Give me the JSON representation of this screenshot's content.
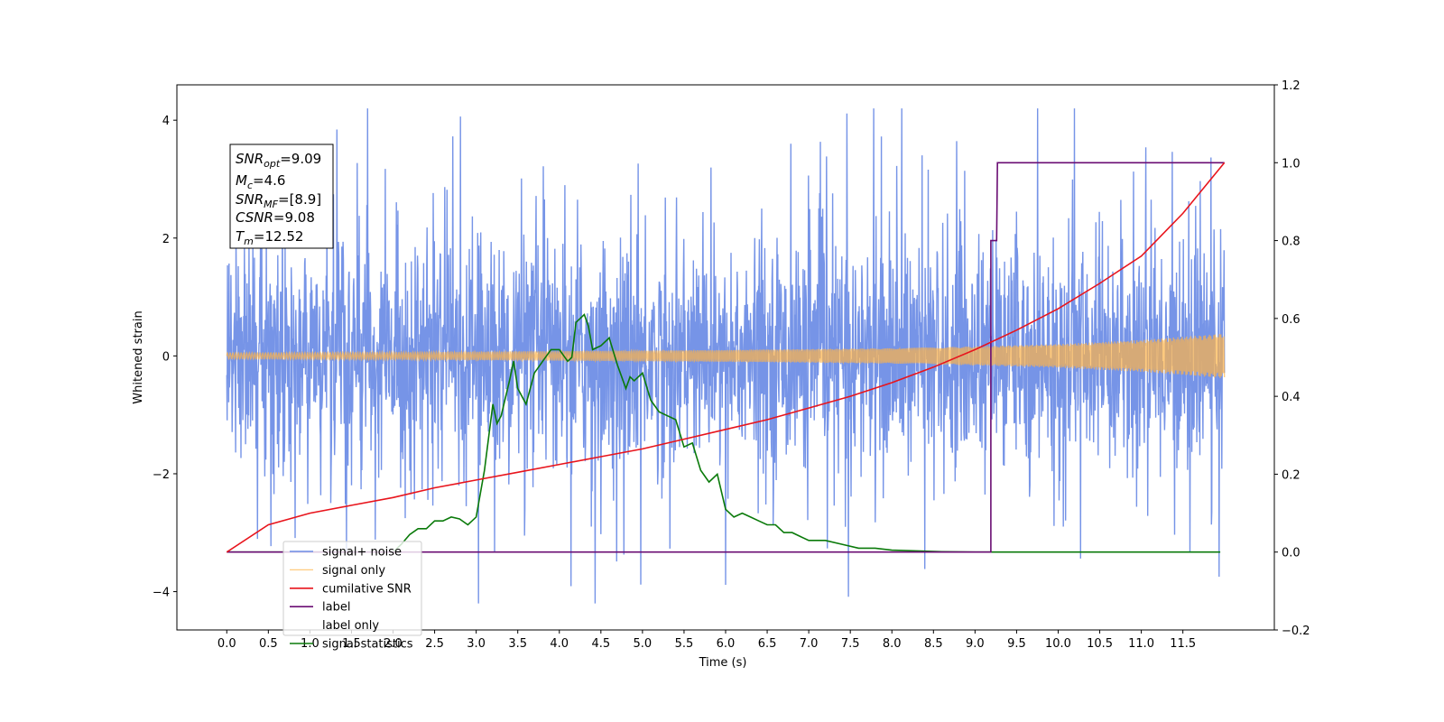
{
  "chart_data": {
    "type": "line",
    "title": "",
    "xlabel": "Time (s)",
    "ylabel": "Whitened strain",
    "xlim": [
      -0.6,
      12.6
    ],
    "ylim_left": [
      -4.65,
      4.6
    ],
    "ylim_right": [
      -0.2,
      1.2
    ],
    "x_ticks": [
      0.0,
      0.5,
      1.0,
      1.5,
      2.0,
      2.5,
      3.0,
      3.5,
      4.0,
      4.5,
      5.0,
      5.5,
      6.0,
      6.5,
      7.0,
      7.5,
      8.0,
      8.5,
      9.0,
      9.5,
      10.0,
      10.5,
      11.0,
      11.5
    ],
    "x_tick_labels": [
      "0.0",
      "0.5",
      "1.0",
      "1.5",
      "2.0",
      "2.5",
      "3.0",
      "3.5",
      "4.0",
      "4.5",
      "5.0",
      "5.5",
      "6.0",
      "6.5",
      "7.0",
      "7.5",
      "8.0",
      "8.5",
      "9.0",
      "9.5",
      "10.0",
      "10.5",
      "11.0",
      "11.5"
    ],
    "y_left_ticks": [
      -4,
      -2,
      0,
      2,
      4
    ],
    "y_left_tick_labels": [
      "−4",
      "−2",
      "0",
      "2",
      "4"
    ],
    "y_right_ticks": [
      -0.2,
      0.0,
      0.2,
      0.4,
      0.6,
      0.8,
      1.0,
      1.2
    ],
    "y_right_tick_labels": [
      "−0.2",
      "0.0",
      "0.2",
      "0.4",
      "0.6",
      "0.8",
      "1.0",
      "1.2"
    ],
    "grid": false,
    "legend_position": "lower-left",
    "annotation": {
      "snr_opt": {
        "symbol": "SNR",
        "sub": "opt",
        "value": "=9.09"
      },
      "mc": {
        "symbol": "M",
        "sub": "c",
        "value": "=4.6"
      },
      "snr_mf": {
        "symbol": "SNR",
        "sub": "MF",
        "value": "=[8.9]"
      },
      "csnr": {
        "symbol": "CSNR",
        "sub": "",
        "value": "=9.08"
      },
      "tm": {
        "symbol": "T",
        "sub": "m",
        "value": "=12.52"
      }
    },
    "series": [
      {
        "name": "signal+ noise",
        "axis": "left",
        "color": "#6f8ee6",
        "description_values": "whitened noise, roughly between -2 and 2 with peaks to about +/-4",
        "x_range": [
          0.0,
          12.0
        ]
      },
      {
        "name": "signal only",
        "axis": "left",
        "color": "#ffb347",
        "x_range": [
          0.0,
          12.0
        ],
        "envelope_x": [
          0.0,
          2.0,
          4.0,
          6.0,
          8.0,
          9.0,
          10.0,
          11.0,
          12.0
        ],
        "envelope_amplitude": [
          0.05,
          0.06,
          0.08,
          0.1,
          0.13,
          0.16,
          0.2,
          0.27,
          0.38
        ]
      },
      {
        "name": "cumilative SNR",
        "axis": "right",
        "color": "#e8141c",
        "x": [
          0.0,
          0.5,
          1.0,
          1.5,
          2.0,
          2.5,
          3.0,
          3.5,
          4.0,
          4.5,
          5.0,
          5.5,
          6.0,
          6.5,
          7.0,
          7.5,
          8.0,
          8.5,
          9.0,
          9.5,
          10.0,
          10.5,
          11.0,
          11.5,
          12.0
        ],
        "y": [
          0.0,
          0.07,
          0.1,
          0.12,
          0.14,
          0.165,
          0.185,
          0.205,
          0.225,
          0.245,
          0.265,
          0.29,
          0.315,
          0.34,
          0.37,
          0.4,
          0.435,
          0.475,
          0.52,
          0.57,
          0.625,
          0.69,
          0.76,
          0.87,
          1.0
        ]
      },
      {
        "name": "label",
        "axis": "right",
        "color": "#6a0d73",
        "x": [
          0.0,
          9.18,
          9.19,
          9.19,
          9.2,
          9.26,
          9.27,
          12.0
        ],
        "y": [
          0.0,
          0.0,
          0.0,
          0.8,
          0.8,
          0.8,
          1.0,
          1.0
        ]
      },
      {
        "name": "label only",
        "axis": "right",
        "color": "#a0a0a0"
      },
      {
        "name": "signal statistics",
        "axis": "right",
        "color": "#0a7a0a",
        "x": [
          0.0,
          1.0,
          2.0,
          2.1,
          2.2,
          2.3,
          2.4,
          2.5,
          2.6,
          2.7,
          2.8,
          2.9,
          3.0,
          3.1,
          3.2,
          3.25,
          3.3,
          3.4,
          3.45,
          3.5,
          3.6,
          3.7,
          3.8,
          3.9,
          4.0,
          4.1,
          4.15,
          4.2,
          4.3,
          4.35,
          4.4,
          4.5,
          4.6,
          4.7,
          4.8,
          4.85,
          4.9,
          5.0,
          5.1,
          5.2,
          5.3,
          5.4,
          5.5,
          5.6,
          5.7,
          5.8,
          5.9,
          6.0,
          6.1,
          6.2,
          6.3,
          6.4,
          6.5,
          6.6,
          6.7,
          6.8,
          6.9,
          7.0,
          7.2,
          7.4,
          7.6,
          7.8,
          8.0,
          8.3,
          8.6,
          9.0,
          10.0,
          11.0,
          11.95
        ],
        "y": [
          0.0,
          0.0,
          0.0,
          0.02,
          0.045,
          0.06,
          0.06,
          0.08,
          0.08,
          0.09,
          0.085,
          0.07,
          0.09,
          0.21,
          0.38,
          0.33,
          0.35,
          0.44,
          0.49,
          0.42,
          0.38,
          0.46,
          0.49,
          0.52,
          0.52,
          0.49,
          0.5,
          0.59,
          0.61,
          0.58,
          0.52,
          0.53,
          0.55,
          0.48,
          0.42,
          0.45,
          0.44,
          0.46,
          0.39,
          0.36,
          0.35,
          0.34,
          0.27,
          0.28,
          0.21,
          0.18,
          0.2,
          0.11,
          0.09,
          0.1,
          0.09,
          0.08,
          0.07,
          0.07,
          0.05,
          0.05,
          0.04,
          0.03,
          0.03,
          0.02,
          0.01,
          0.01,
          0.005,
          0.003,
          0.001,
          0.0,
          0.0,
          0.0,
          0.0
        ]
      }
    ]
  }
}
